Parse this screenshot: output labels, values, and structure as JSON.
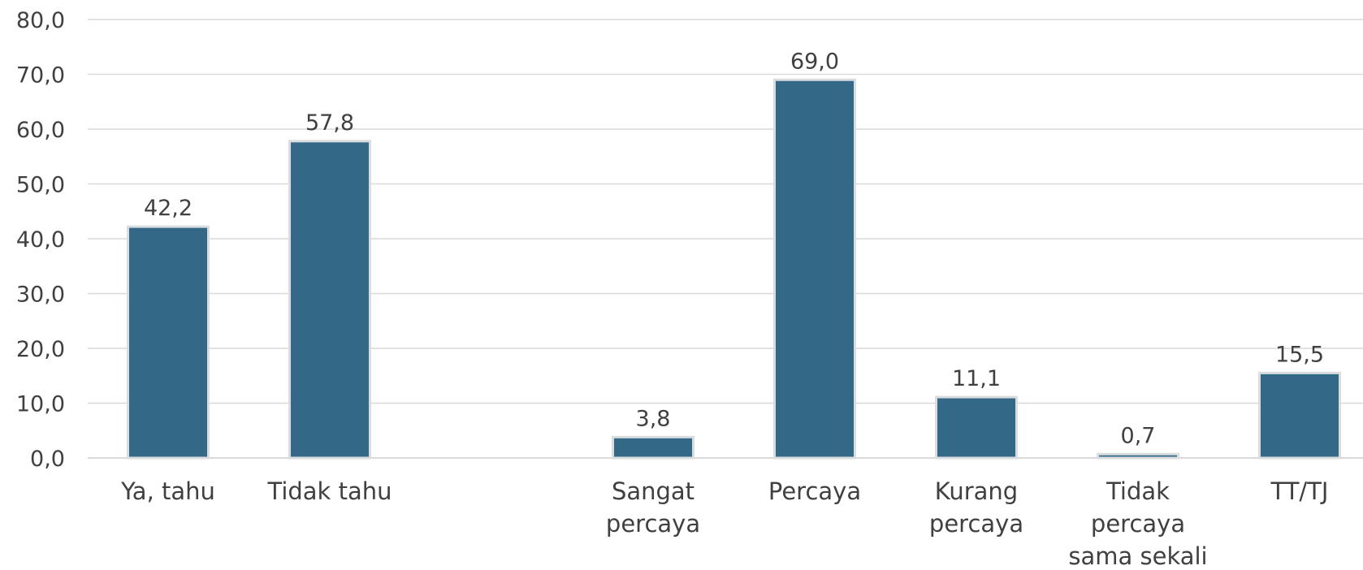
{
  "chart_data": {
    "type": "bar",
    "title": "",
    "xlabel": "",
    "ylabel": "",
    "ylim": [
      0,
      80
    ],
    "yticks": [
      "0,0",
      "10,0",
      "20,0",
      "30,0",
      "40,0",
      "50,0",
      "60,0",
      "70,0",
      "80,0"
    ],
    "grid": true,
    "categories": [
      [
        "Ya, tahu"
      ],
      [
        "Tidak tahu"
      ],
      [],
      [
        "Sangat",
        "percaya"
      ],
      [
        "Percaya"
      ],
      [
        "Kurang",
        "percaya"
      ],
      [
        "Tidak",
        "percaya",
        "sama sekali"
      ],
      [
        "TT/TJ"
      ]
    ],
    "series": [
      {
        "values": [
          42.2,
          57.8,
          null,
          3.8,
          69.0,
          11.1,
          0.7,
          15.5
        ],
        "data_labels": [
          "42,2",
          "57,8",
          "",
          "3,8",
          "69,0",
          "11,1",
          "0,7",
          "15,5"
        ]
      }
    ],
    "colors": {
      "bar": "#336886",
      "bar_edge": "#d9dde0",
      "grid": "#d9d9d9",
      "axis": "#d9d9d9",
      "text": "#404040"
    }
  }
}
